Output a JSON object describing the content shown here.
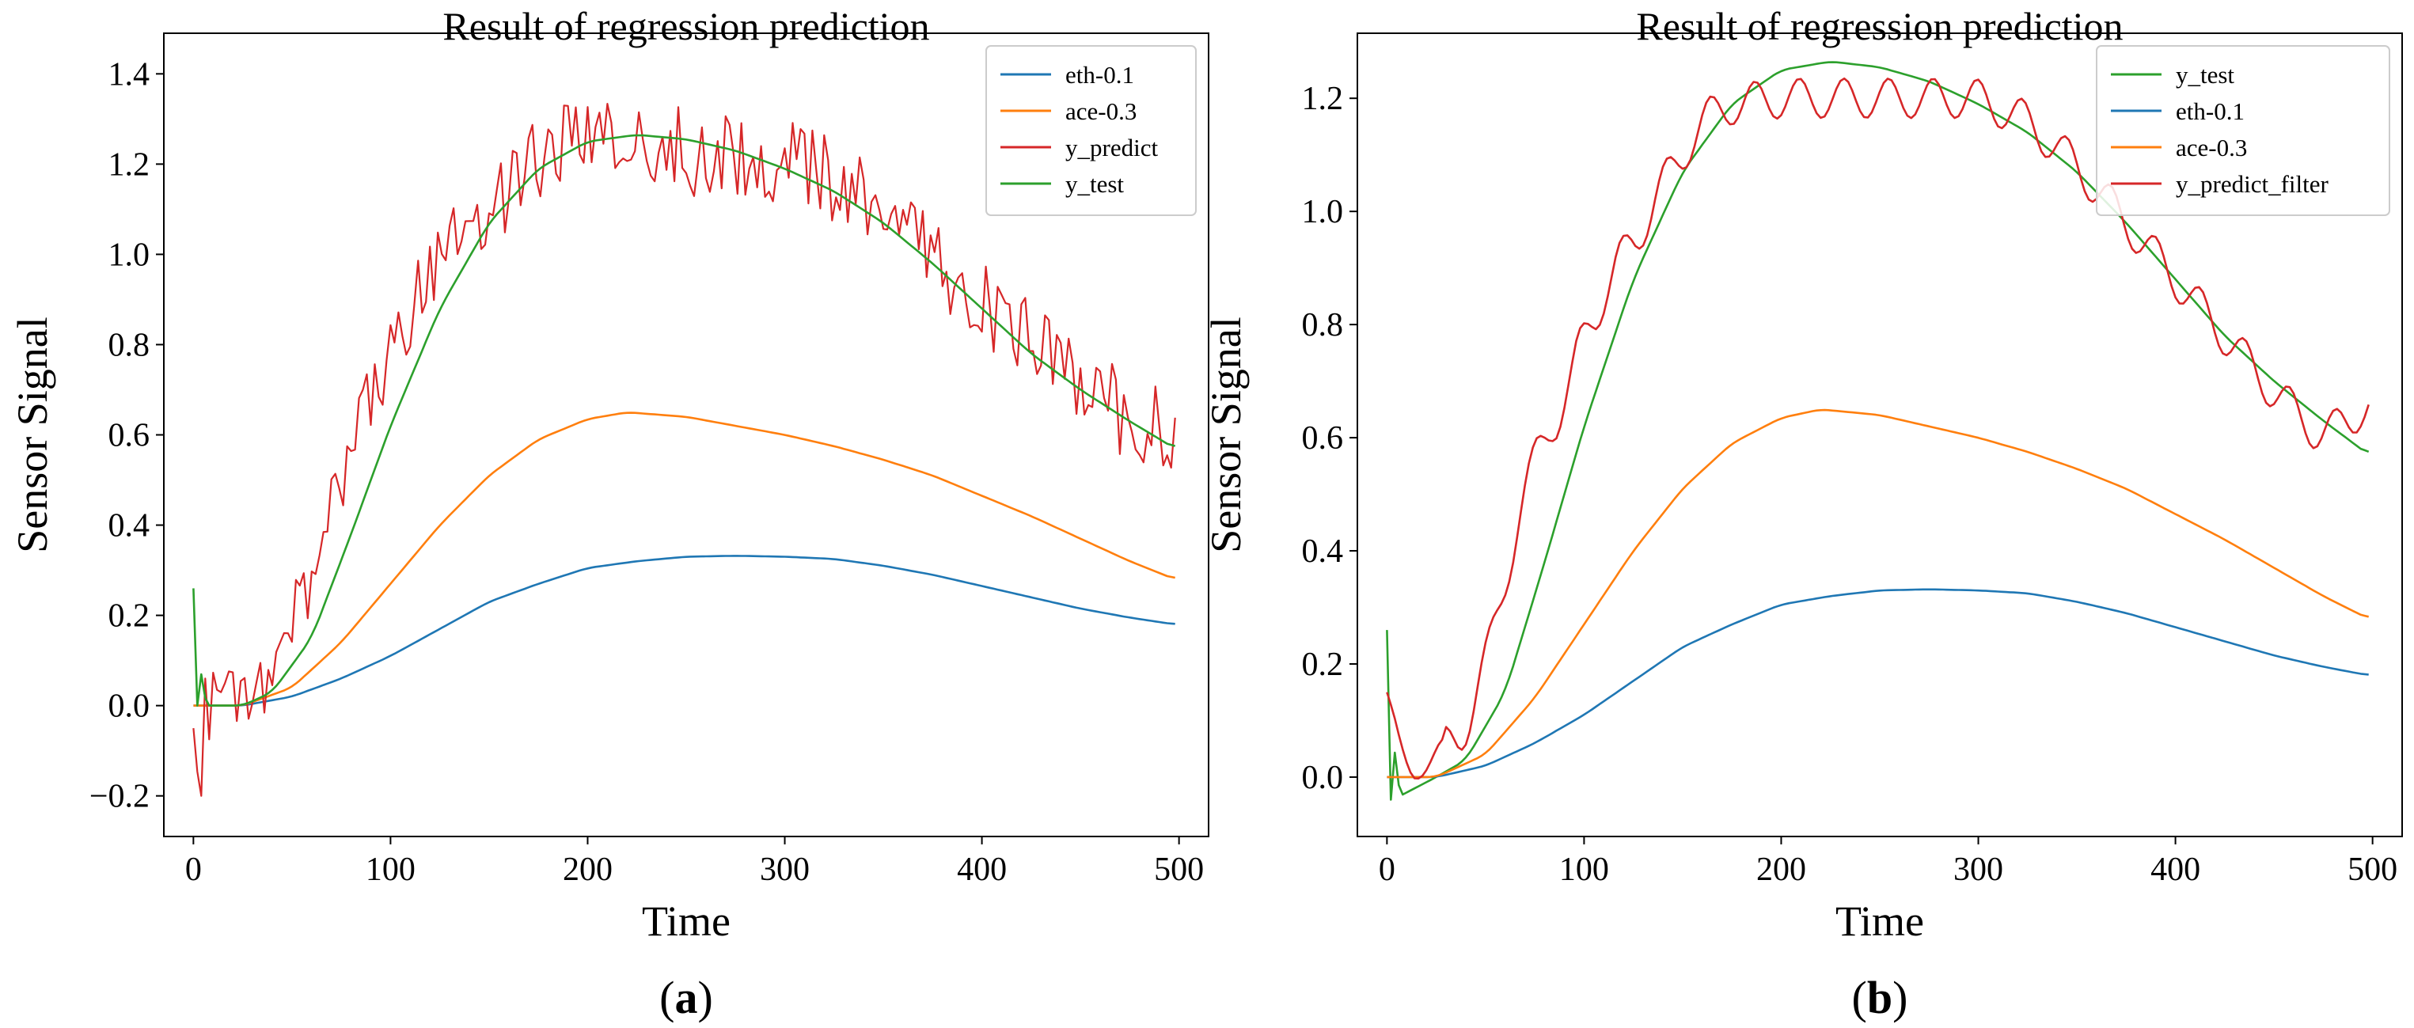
{
  "chart_data": [
    {
      "type": "line",
      "panel_label": "a",
      "title": "Result of regression prediction",
      "xlabel": "Time",
      "ylabel": "Sensor Signal",
      "xlim": [
        -15,
        515
      ],
      "ylim": [
        -0.29,
        1.49
      ],
      "xticks": [
        0,
        100,
        200,
        300,
        400,
        500
      ],
      "xtick_labels": [
        "0",
        "100",
        "200",
        "300",
        "400",
        "500"
      ],
      "yticks": [
        -0.2,
        0.0,
        0.2,
        0.4,
        0.6,
        0.8,
        1.0,
        1.2,
        1.4
      ],
      "ytick_labels": [
        "−0.2",
        "0.0",
        "0.2",
        "0.4",
        "0.6",
        "0.8",
        "1.0",
        "1.2",
        "1.4"
      ],
      "legend_position": "top-right",
      "series": [
        {
          "name": "eth-0.1",
          "color": "#1f77b4",
          "style": "smooth",
          "points": [
            [
              0,
              0.0
            ],
            [
              25,
              0.0
            ],
            [
              50,
              0.02
            ],
            [
              75,
              0.06
            ],
            [
              100,
              0.11
            ],
            [
              125,
              0.17
            ],
            [
              150,
              0.23
            ],
            [
              175,
              0.27
            ],
            [
              200,
              0.305
            ],
            [
              225,
              0.32
            ],
            [
              250,
              0.33
            ],
            [
              275,
              0.332
            ],
            [
              300,
              0.33
            ],
            [
              325,
              0.325
            ],
            [
              350,
              0.31
            ],
            [
              375,
              0.29
            ],
            [
              400,
              0.265
            ],
            [
              425,
              0.24
            ],
            [
              450,
              0.215
            ],
            [
              475,
              0.195
            ],
            [
              498,
              0.18
            ]
          ]
        },
        {
          "name": "ace-0.3",
          "color": "#ff7f0e",
          "style": "smooth",
          "points": [
            [
              0,
              0.0
            ],
            [
              25,
              0.0
            ],
            [
              50,
              0.04
            ],
            [
              75,
              0.14
            ],
            [
              100,
              0.27
            ],
            [
              125,
              0.4
            ],
            [
              150,
              0.51
            ],
            [
              175,
              0.59
            ],
            [
              200,
              0.635
            ],
            [
              220,
              0.65
            ],
            [
              250,
              0.64
            ],
            [
              275,
              0.62
            ],
            [
              300,
              0.6
            ],
            [
              325,
              0.575
            ],
            [
              350,
              0.545
            ],
            [
              375,
              0.51
            ],
            [
              400,
              0.465
            ],
            [
              425,
              0.42
            ],
            [
              450,
              0.37
            ],
            [
              475,
              0.32
            ],
            [
              498,
              0.28
            ]
          ]
        },
        {
          "name": "y_predict",
          "color": "#d62728",
          "style": "noisy",
          "points": [
            [
              0,
              -0.05
            ],
            [
              5,
              -0.2
            ],
            [
              10,
              0.06
            ],
            [
              25,
              0.0
            ],
            [
              40,
              0.06
            ],
            [
              60,
              0.3
            ],
            [
              80,
              0.58
            ],
            [
              100,
              0.8
            ],
            [
              120,
              0.98
            ],
            [
              140,
              1.08
            ],
            [
              160,
              1.15
            ],
            [
              175,
              1.22
            ],
            [
              200,
              1.24
            ],
            [
              225,
              1.25
            ],
            [
              250,
              1.23
            ],
            [
              275,
              1.22
            ],
            [
              300,
              1.2
            ],
            [
              325,
              1.17
            ],
            [
              350,
              1.1
            ],
            [
              375,
              1.0
            ],
            [
              400,
              0.9
            ],
            [
              425,
              0.8
            ],
            [
              450,
              0.72
            ],
            [
              475,
              0.64
            ],
            [
              498,
              0.6
            ]
          ]
        },
        {
          "name": "y_test",
          "color": "#2ca02c",
          "style": "smooth",
          "points": [
            [
              0,
              0.26
            ],
            [
              3,
              0.0
            ],
            [
              25,
              0.0
            ],
            [
              40,
              0.03
            ],
            [
              60,
              0.15
            ],
            [
              80,
              0.38
            ],
            [
              100,
              0.62
            ],
            [
              125,
              0.88
            ],
            [
              150,
              1.07
            ],
            [
              175,
              1.19
            ],
            [
              200,
              1.25
            ],
            [
              225,
              1.265
            ],
            [
              250,
              1.255
            ],
            [
              275,
              1.23
            ],
            [
              300,
              1.19
            ],
            [
              325,
              1.14
            ],
            [
              350,
              1.07
            ],
            [
              375,
              0.98
            ],
            [
              400,
              0.88
            ],
            [
              425,
              0.78
            ],
            [
              450,
              0.7
            ],
            [
              475,
              0.63
            ],
            [
              498,
              0.57
            ]
          ]
        }
      ]
    },
    {
      "type": "line",
      "panel_label": "b",
      "title": "Result of regression prediction",
      "xlabel": "Time",
      "ylabel": "Sensor Signal",
      "xlim": [
        -15,
        515
      ],
      "ylim": [
        -0.105,
        1.315
      ],
      "xticks": [
        0,
        100,
        200,
        300,
        400,
        500
      ],
      "xtick_labels": [
        "0",
        "100",
        "200",
        "300",
        "400",
        "500"
      ],
      "yticks": [
        0.0,
        0.2,
        0.4,
        0.6,
        0.8,
        1.0,
        1.2
      ],
      "ytick_labels": [
        "0.0",
        "0.2",
        "0.4",
        "0.6",
        "0.8",
        "1.0",
        "1.2"
      ],
      "legend_position": "top-right",
      "series": [
        {
          "name": "y_test",
          "color": "#2ca02c",
          "style": "smooth",
          "points": [
            [
              0,
              0.26
            ],
            [
              3,
              -0.04
            ],
            [
              25,
              0.0
            ],
            [
              40,
              0.03
            ],
            [
              60,
              0.15
            ],
            [
              80,
              0.38
            ],
            [
              100,
              0.62
            ],
            [
              125,
              0.88
            ],
            [
              150,
              1.07
            ],
            [
              175,
              1.19
            ],
            [
              200,
              1.25
            ],
            [
              225,
              1.265
            ],
            [
              250,
              1.255
            ],
            [
              275,
              1.23
            ],
            [
              300,
              1.19
            ],
            [
              325,
              1.14
            ],
            [
              350,
              1.07
            ],
            [
              375,
              0.98
            ],
            [
              400,
              0.88
            ],
            [
              425,
              0.78
            ],
            [
              450,
              0.7
            ],
            [
              475,
              0.63
            ],
            [
              498,
              0.57
            ]
          ]
        },
        {
          "name": "eth-0.1",
          "color": "#1f77b4",
          "style": "smooth",
          "points": [
            [
              0,
              0.0
            ],
            [
              25,
              0.0
            ],
            [
              50,
              0.02
            ],
            [
              75,
              0.06
            ],
            [
              100,
              0.11
            ],
            [
              125,
              0.17
            ],
            [
              150,
              0.23
            ],
            [
              175,
              0.27
            ],
            [
              200,
              0.305
            ],
            [
              225,
              0.32
            ],
            [
              250,
              0.33
            ],
            [
              275,
              0.332
            ],
            [
              300,
              0.33
            ],
            [
              325,
              0.325
            ],
            [
              350,
              0.31
            ],
            [
              375,
              0.29
            ],
            [
              400,
              0.265
            ],
            [
              425,
              0.24
            ],
            [
              450,
              0.215
            ],
            [
              475,
              0.195
            ],
            [
              498,
              0.18
            ]
          ]
        },
        {
          "name": "ace-0.3",
          "color": "#ff7f0e",
          "style": "smooth",
          "points": [
            [
              0,
              0.0
            ],
            [
              25,
              0.0
            ],
            [
              50,
              0.04
            ],
            [
              75,
              0.14
            ],
            [
              100,
              0.27
            ],
            [
              125,
              0.4
            ],
            [
              150,
              0.51
            ],
            [
              175,
              0.59
            ],
            [
              200,
              0.635
            ],
            [
              220,
              0.65
            ],
            [
              250,
              0.64
            ],
            [
              275,
              0.62
            ],
            [
              300,
              0.6
            ],
            [
              325,
              0.575
            ],
            [
              350,
              0.545
            ],
            [
              375,
              0.51
            ],
            [
              400,
              0.465
            ],
            [
              425,
              0.42
            ],
            [
              450,
              0.37
            ],
            [
              475,
              0.32
            ],
            [
              498,
              0.28
            ]
          ]
        },
        {
          "name": "y_predict_filter",
          "color": "#d62728",
          "style": "wavy",
          "points": [
            [
              0,
              0.15
            ],
            [
              10,
              0.0
            ],
            [
              20,
              0.02
            ],
            [
              30,
              0.06
            ],
            [
              40,
              0.08
            ],
            [
              50,
              0.2
            ],
            [
              60,
              0.35
            ],
            [
              70,
              0.5
            ],
            [
              80,
              0.62
            ],
            [
              90,
              0.64
            ],
            [
              100,
              0.8
            ],
            [
              110,
              0.84
            ],
            [
              120,
              0.93
            ],
            [
              130,
              0.97
            ],
            [
              140,
              1.05
            ],
            [
              150,
              1.1
            ],
            [
              160,
              1.16
            ],
            [
              175,
              1.19
            ],
            [
              200,
              1.2
            ],
            [
              225,
              1.2
            ],
            [
              250,
              1.2
            ],
            [
              275,
              1.2
            ],
            [
              300,
              1.2
            ],
            [
              325,
              1.16
            ],
            [
              350,
              1.08
            ],
            [
              375,
              0.98
            ],
            [
              400,
              0.88
            ],
            [
              425,
              0.78
            ],
            [
              450,
              0.68
            ],
            [
              475,
              0.6
            ],
            [
              498,
              0.66
            ]
          ]
        }
      ]
    }
  ]
}
